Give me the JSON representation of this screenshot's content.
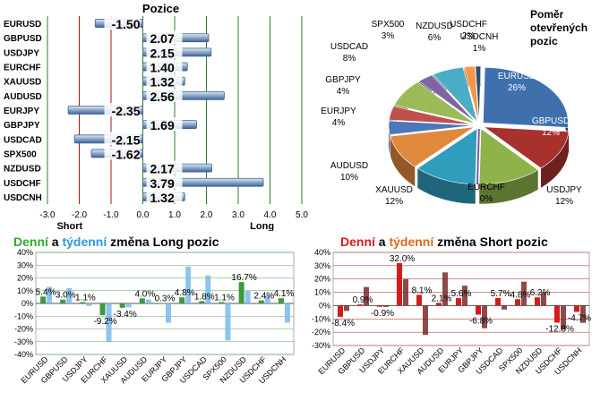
{
  "chart_data": [
    {
      "type": "bar",
      "orientation": "horizontal",
      "title": "Pozice",
      "categories": [
        "EURUSD",
        "GBPUSD",
        "USDJPY",
        "EURCHF",
        "XAUUSD",
        "AUDUSD",
        "EURJPY",
        "GBPJPY",
        "USDCAD",
        "SPX500",
        "NZDUSD",
        "USDCHF",
        "USDCNH"
      ],
      "values": [
        -1.5,
        2.07,
        2.15,
        1.4,
        1.32,
        2.56,
        -2.35,
        1.69,
        -2.15,
        -1.62,
        2.17,
        3.79,
        1.32
      ],
      "value_labels": [
        "-1.50",
        "2.07",
        "2.15",
        "1.40",
        "1.32",
        "2.56",
        "-2.35",
        "1.69",
        "-2.15",
        "-1.62",
        "2.17",
        "3.79",
        "1.32"
      ],
      "xlim": [
        -3.0,
        5.0
      ],
      "xticks": [
        "-3.0",
        "-2.0",
        "-1.0",
        "0.0",
        "1.0",
        "2.0",
        "3.0",
        "4.0",
        "5.0"
      ],
      "annotations": {
        "short": "Short",
        "long": "Long"
      },
      "colors": {
        "bar": "#8aa6c8",
        "bar_edge": "#3f6393",
        "ref_line": "#a01818",
        "grid": "#2d7d2d"
      }
    },
    {
      "type": "pie",
      "title": [
        "Poměr",
        "otevřených",
        "pozic"
      ],
      "labels": [
        "EURUSD",
        "GBPUSD",
        "USDJPY",
        "EURCHF",
        "XAUUSD",
        "AUDUSD",
        "EURJPY",
        "GBPJPY",
        "USDCAD",
        "SPX500",
        "NZDUSD",
        "USDCHF",
        "USDCNH"
      ],
      "values": [
        26,
        12,
        12,
        0,
        12,
        10,
        4,
        4,
        8,
        3,
        6,
        2,
        1
      ],
      "value_labels": [
        "26%",
        "12%",
        "12%",
        "0%",
        "12%",
        "10%",
        "4%",
        "4%",
        "8%",
        "3%",
        "6%",
        "2%",
        "1%"
      ],
      "colors": [
        "#3f70ad",
        "#a8312e",
        "#8fb24a",
        "#7a5fa0",
        "#2f9dbc",
        "#e0883c",
        "#4a78b8",
        "#c0504d",
        "#9bbb59",
        "#8064a2",
        "#4bacc6",
        "#f79646",
        "#2c4d75"
      ]
    },
    {
      "type": "bar",
      "title_parts": [
        "Denní",
        " a ",
        "týdenní",
        " změna Long pozic"
      ],
      "categories": [
        "EURUSD",
        "GBPUSD",
        "USDJPY",
        "EURCHF",
        "XAUUSD",
        "AUDUSD",
        "EURJPY",
        "GBPJPY",
        "USDCAD",
        "SPX500",
        "NZDUSD",
        "USDCHF",
        "USDCNH"
      ],
      "series": [
        {
          "name": "Denní",
          "values": [
            5.4,
            3.0,
            1.1,
            -9.2,
            -3.4,
            4.0,
            0.3,
            4.8,
            1.8,
            1.1,
            16.7,
            2.4,
            4.1
          ]
        },
        {
          "name": "týdenní",
          "values": [
            13.0,
            12.0,
            -2.0,
            -30.0,
            -3.0,
            3.0,
            -15.0,
            29.0,
            22.0,
            -29.0,
            10.0,
            6.0,
            -15.0
          ]
        }
      ],
      "value_labels": [
        "5.4%",
        "3.0%",
        "1.1%",
        "-9.2%",
        "-3.4%",
        "4.0%",
        "0.3%",
        "4.8%",
        "1.8%",
        "1.1%",
        "16.7%",
        "2.4%",
        "4.1%"
      ],
      "ylim": [
        -40,
        40
      ],
      "yticks": [
        "40%",
        "30%",
        "20%",
        "10%",
        "0%",
        "-10%",
        "-20%",
        "-30%",
        "-40%"
      ],
      "colors": {
        "daily": "#3d9a3d",
        "weekly": "#7ab8ec",
        "title_daily": "#2eaa2e",
        "title_weekly": "#2a9adc"
      }
    },
    {
      "type": "bar",
      "title_parts": [
        "Denní",
        " a ",
        "týdenní",
        " změna Short pozic"
      ],
      "categories": [
        "EURUSD",
        "GBPUSD",
        "USDJPY",
        "EURCHF",
        "XAUUSD",
        "AUDUSD",
        "EURJPY",
        "GBPJPY",
        "USDCAD",
        "SPX500",
        "NZDUSD",
        "USDCHF",
        "USDCNH"
      ],
      "series": [
        {
          "name": "Denní",
          "values": [
            -8.4,
            0.9,
            -0.9,
            32.0,
            8.1,
            2.1,
            5.6,
            -6.8,
            5.7,
            4.8,
            6.2,
            -12.8,
            -4.7
          ]
        },
        {
          "name": "týdenní",
          "values": [
            -4.0,
            14.0,
            -1.0,
            20.0,
            -22.0,
            25.0,
            15.0,
            -17.0,
            -3.0,
            18.0,
            10.0,
            -18.0,
            -13.0
          ]
        }
      ],
      "value_labels": [
        "-8.4%",
        "0.9%",
        "-0.9%",
        "32.0%",
        "8.1%",
        "2.1%",
        "5.6%",
        "-6.8%",
        "5.7%",
        "4.8%",
        "6.2%",
        "-12.8%",
        "-4.7%"
      ],
      "ylim": [
        -30,
        40
      ],
      "yticks": [
        "40%",
        "30%",
        "20%",
        "10%",
        "0%",
        "-10%",
        "-20%",
        "-30%"
      ],
      "colors": {
        "daily": "#d21c1c",
        "weekly": "#7a2a2a",
        "title_daily": "#d42020",
        "title_weekly": "#d86a1a"
      }
    }
  ]
}
